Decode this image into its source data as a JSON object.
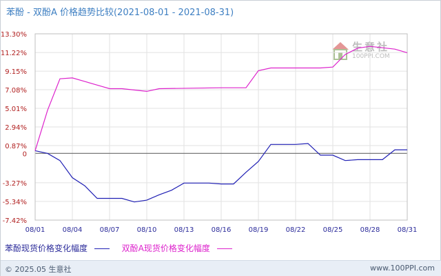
{
  "title": "苯酚 - 双酚A 价格趋势比较(2021-08-01 - 2021-08-31)",
  "watermark": {
    "text": "生意社",
    "url": "100PPI.COM"
  },
  "footer": {
    "copyright": "© 2025.05 生意社",
    "url": "www.100PPI.com"
  },
  "colors": {
    "series1": "#1f1fb4",
    "series2": "#dd22cc",
    "y_ticks": "#b01e1e",
    "x_ticks": "#2b2b9a",
    "grid": "#e2e2e2",
    "zero": "#555555"
  },
  "chart_data": {
    "type": "line",
    "title": "苯酚 - 双酚A 价格趋势比较(2021-08-01 - 2021-08-31)",
    "xlabel": "",
    "ylabel": "",
    "ylim": [
      -7.42,
      13.3
    ],
    "yticks": [
      13.3,
      11.22,
      9.15,
      7.08,
      5.01,
      2.94,
      0.87,
      0,
      -3.27,
      -5.34,
      -7.42
    ],
    "ytick_labels": [
      "13.30%",
      "11.22%",
      "9.15%",
      "7.08%",
      "5.01%",
      "2.94%",
      "0.87%",
      "0",
      "-3.27%",
      "-5.34%",
      "-7.42%"
    ],
    "xlim_days": [
      1,
      31
    ],
    "xtick_days": [
      1,
      4,
      7,
      10,
      13,
      16,
      19,
      22,
      25,
      28,
      31
    ],
    "xtick_labels": [
      "08/01",
      "08/04",
      "08/07",
      "08/10",
      "08/13",
      "08/16",
      "08/19",
      "08/22",
      "08/25",
      "08/28",
      "08/31"
    ],
    "grid": true,
    "legend_position": "bottom",
    "series": [
      {
        "name": "苯酚现货价格变化幅度",
        "points": [
          [
            1,
            0.3
          ],
          [
            2,
            0.0
          ],
          [
            3,
            -0.8
          ],
          [
            4,
            -2.7
          ],
          [
            5,
            -3.6
          ],
          [
            6,
            -5.0
          ],
          [
            8,
            -5.0
          ],
          [
            9,
            -5.4
          ],
          [
            10,
            -5.2
          ],
          [
            11,
            -4.6
          ],
          [
            12,
            -4.1
          ],
          [
            13,
            -3.3
          ],
          [
            15,
            -3.3
          ],
          [
            16,
            -3.4
          ],
          [
            17,
            -3.4
          ],
          [
            18,
            -2.1
          ],
          [
            19,
            -0.9
          ],
          [
            20,
            1.0
          ],
          [
            22,
            1.0
          ],
          [
            23,
            1.1
          ],
          [
            24,
            -0.2
          ],
          [
            25,
            -0.2
          ],
          [
            26,
            -0.8
          ],
          [
            27,
            -0.7
          ],
          [
            29,
            -0.7
          ],
          [
            30,
            0.4
          ],
          [
            31,
            0.4
          ]
        ]
      },
      {
        "name": "双酚A现货价格变化幅度",
        "points": [
          [
            1,
            0.3
          ],
          [
            2,
            4.8
          ],
          [
            3,
            8.3
          ],
          [
            4,
            8.4
          ],
          [
            5,
            8.0
          ],
          [
            6,
            7.6
          ],
          [
            7,
            7.2
          ],
          [
            8,
            7.2
          ],
          [
            10,
            6.9
          ],
          [
            11,
            7.2
          ],
          [
            16,
            7.3
          ],
          [
            18,
            7.3
          ],
          [
            19,
            9.2
          ],
          [
            20,
            9.5
          ],
          [
            24,
            9.5
          ],
          [
            25,
            9.6
          ],
          [
            26,
            11.0
          ],
          [
            27,
            11.7
          ],
          [
            28,
            11.9
          ],
          [
            30,
            11.6
          ],
          [
            31,
            11.2
          ]
        ]
      }
    ]
  }
}
